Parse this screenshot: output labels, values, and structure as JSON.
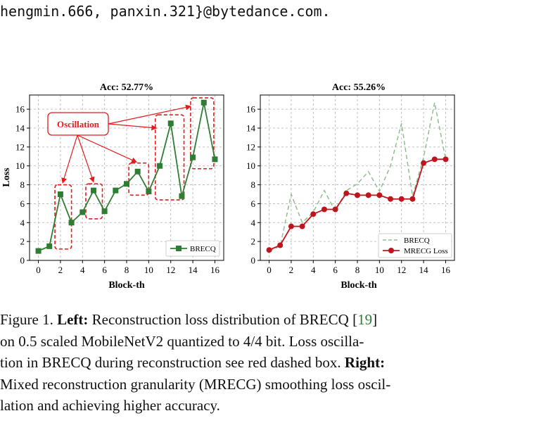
{
  "header": {
    "email_text": "hengmin.666, panxin.321}@bytedance.com."
  },
  "figure": {
    "annotation_label": "Oscillation",
    "colors": {
      "brecq": "#2e7d32",
      "brecq_dashed": "#8fbf8f",
      "mrecg": "#c0141c",
      "annotation": "#e41a1c"
    }
  },
  "chart_data": [
    {
      "type": "line",
      "title": "Acc: 52.77%",
      "xlabel": "Block-th",
      "ylabel": "Loss",
      "xlim": [
        -0.8,
        16.8
      ],
      "ylim": [
        0,
        17.5
      ],
      "xticks": [
        "0",
        "2",
        "4",
        "6",
        "8",
        "10",
        "12",
        "14",
        "16"
      ],
      "yticks": [
        "0",
        "2",
        "4",
        "6",
        "8",
        "10",
        "12",
        "14",
        "16"
      ],
      "grid": true,
      "legend_position": "lower-right",
      "x": [
        0,
        1,
        2,
        3,
        4,
        5,
        6,
        7,
        8,
        9,
        10,
        11,
        12,
        13,
        14,
        15,
        16
      ],
      "series": [
        {
          "name": "BRECQ",
          "values": [
            1.0,
            1.5,
            7.0,
            4.0,
            5.1,
            7.4,
            5.2,
            7.4,
            8.1,
            9.4,
            7.3,
            10.0,
            14.5,
            6.8,
            10.9,
            16.7,
            10.7
          ]
        }
      ],
      "annotation": "Oscillation"
    },
    {
      "type": "line",
      "title": "Acc: 55.26%",
      "xlabel": "Block-th",
      "ylabel": "",
      "xlim": [
        -0.8,
        16.8
      ],
      "ylim": [
        0,
        17.5
      ],
      "xticks": [
        "0",
        "2",
        "4",
        "6",
        "8",
        "10",
        "12",
        "14",
        "16"
      ],
      "yticks": [
        "0",
        "2",
        "4",
        "6",
        "8",
        "10",
        "12",
        "14",
        "16"
      ],
      "grid": true,
      "legend_position": "lower-right",
      "x": [
        0,
        1,
        2,
        3,
        4,
        5,
        6,
        7,
        8,
        9,
        10,
        11,
        12,
        13,
        14,
        15,
        16
      ],
      "series": [
        {
          "name": "BRECQ",
          "values": [
            1.0,
            1.5,
            7.0,
            4.0,
            5.1,
            7.4,
            5.2,
            7.4,
            8.1,
            9.4,
            7.3,
            10.0,
            14.5,
            6.8,
            10.9,
            16.7,
            10.7
          ]
        },
        {
          "name": "MRECG Loss",
          "values": [
            1.1,
            1.6,
            3.6,
            3.6,
            4.9,
            5.4,
            5.4,
            7.1,
            6.9,
            6.9,
            6.9,
            6.5,
            6.5,
            6.5,
            10.3,
            10.7,
            10.7
          ]
        }
      ]
    }
  ],
  "caption": {
    "figure_label": "Figure 1.",
    "left_label": "Left:",
    "line1_text": " Reconstruction loss distribution of BRECQ ",
    "ref_open": "[",
    "ref_num": "19",
    "ref_close": "]",
    "line2_text": "on 0.5 scaled MobileNetV2 quantized to 4/4 bit.  Loss oscilla-",
    "line3_text": "tion in BRECQ during reconstruction see red dashed box. ",
    "right_label": "Right:",
    "line4_text": "Mixed reconstruction granularity (MRECG) smoothing loss oscil-",
    "line5_text": "lation and achieving higher accuracy."
  }
}
